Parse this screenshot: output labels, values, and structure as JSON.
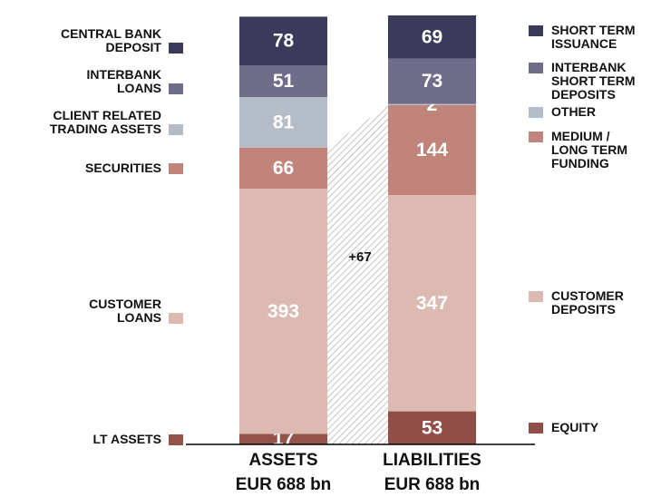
{
  "chart_data": {
    "type": "stacked-bar",
    "categories": [
      "ASSETS",
      "LIABILITIES"
    ],
    "subtitles": [
      "EUR 688 bn",
      "EUR 688 bn"
    ],
    "annotation": "+67",
    "series": [
      {
        "name": "LT ASSETS",
        "color": "#93524a",
        "values": [
          17,
          null
        ]
      },
      {
        "name": "CUSTOMER\nLOANS",
        "color": "#dcbab2",
        "values": [
          393,
          null
        ]
      },
      {
        "name": "SECURITIES",
        "color": "#c0847a",
        "values": [
          66,
          null
        ]
      },
      {
        "name": "CLIENT RELATED\nTRADING ASSETS",
        "color": "#b4bcc8",
        "values": [
          81,
          null
        ]
      },
      {
        "name": "INTERBANK\nLOANS",
        "color": "#6f6d8a",
        "values": [
          51,
          null
        ]
      },
      {
        "name": "CENTRAL BANK\nDEPOSIT",
        "color": "#3b3a5a",
        "values": [
          78,
          null
        ]
      },
      {
        "name": "EQUITY",
        "color": "#8f4f47",
        "values": [
          null,
          53
        ]
      },
      {
        "name": "CUSTOMER\nDEPOSITS",
        "color": "#dcbab2",
        "values": [
          null,
          347
        ]
      },
      {
        "name": "MEDIUM /\nLONG TERM\nFUNDING",
        "color": "#c0847a",
        "values": [
          null,
          144
        ]
      },
      {
        "name": "OTHER",
        "color": "#b4bcc8",
        "values": [
          null,
          2
        ]
      },
      {
        "name": "INTERBANK\nSHORT TERM\nDEPOSITS",
        "color": "#6f6d8a",
        "values": [
          null,
          73
        ]
      },
      {
        "name": "SHORT TERM\nISSUANCE",
        "color": "#3b3a5a",
        "values": [
          null,
          69
        ]
      }
    ]
  }
}
